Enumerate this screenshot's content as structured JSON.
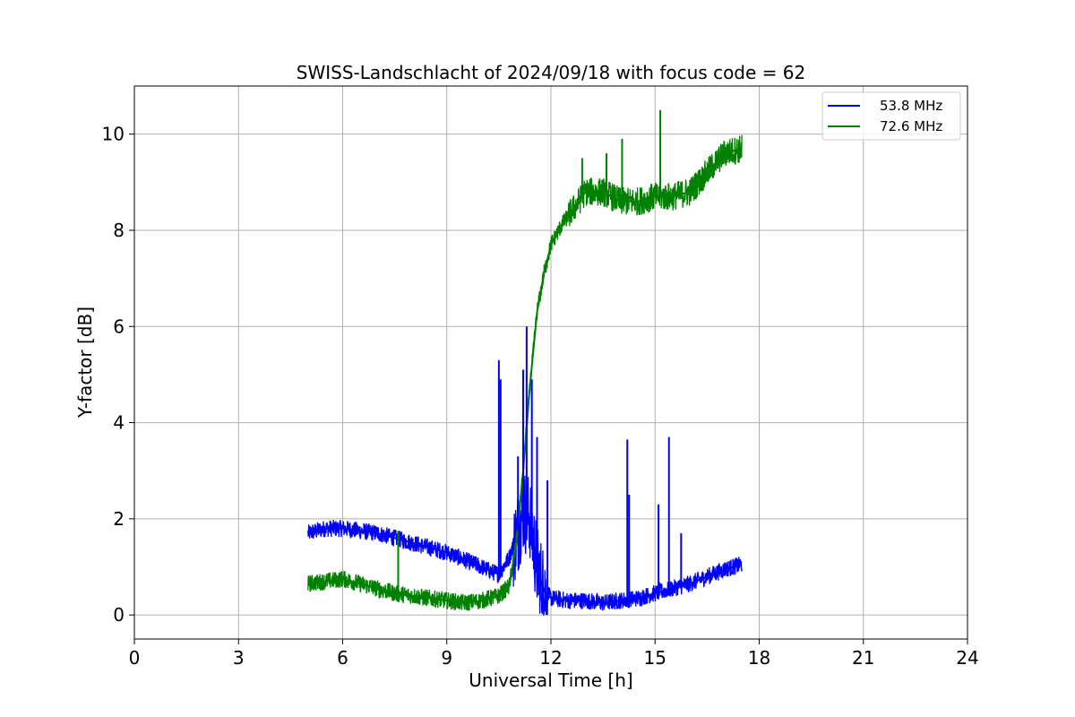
{
  "chart_data": {
    "type": "line",
    "title": "SWISS-Landschlacht of 2024/09/18 with focus code = 62",
    "xlabel": "Universal Time [h]",
    "ylabel": "Y-factor [dB]",
    "xlim": [
      0,
      24
    ],
    "ylim": [
      -0.5,
      11
    ],
    "xticks": [
      0,
      3,
      6,
      9,
      12,
      15,
      18,
      21,
      24
    ],
    "yticks": [
      0,
      2,
      4,
      6,
      8,
      10
    ],
    "grid": true,
    "legend_position": "top-right",
    "series": [
      {
        "name": "53.8 MHz",
        "color": "#0000ff",
        "x": [
          5.0,
          5.5,
          6.0,
          6.5,
          7.0,
          7.5,
          8.0,
          8.5,
          9.0,
          9.5,
          10.0,
          10.3,
          10.5,
          10.8,
          11.0,
          11.2,
          11.4,
          11.6,
          11.8,
          12.0,
          12.5,
          13.0,
          13.5,
          14.0,
          14.5,
          15.0,
          15.5,
          16.0,
          16.5,
          17.0,
          17.5
        ],
        "y": [
          1.7,
          1.8,
          1.8,
          1.75,
          1.7,
          1.6,
          1.5,
          1.4,
          1.3,
          1.15,
          1.0,
          0.9,
          0.85,
          1.2,
          1.6,
          2.2,
          2.0,
          1.0,
          0.5,
          0.35,
          0.3,
          0.3,
          0.25,
          0.3,
          0.35,
          0.45,
          0.55,
          0.65,
          0.8,
          0.95,
          1.05
        ]
      },
      {
        "name": "72.6 MHz",
        "color": "#008000",
        "x": [
          5.0,
          5.5,
          6.0,
          6.5,
          7.0,
          7.5,
          8.0,
          8.5,
          9.0,
          9.5,
          10.0,
          10.5,
          10.8,
          11.0,
          11.2,
          11.4,
          11.6,
          11.8,
          12.0,
          12.3,
          12.6,
          13.0,
          13.5,
          14.0,
          14.5,
          15.0,
          15.5,
          16.0,
          16.5,
          17.0,
          17.5
        ],
        "y": [
          0.65,
          0.7,
          0.75,
          0.65,
          0.55,
          0.45,
          0.4,
          0.35,
          0.3,
          0.25,
          0.3,
          0.4,
          0.6,
          1.5,
          3.0,
          4.8,
          6.3,
          7.1,
          7.7,
          8.1,
          8.4,
          8.8,
          8.8,
          8.6,
          8.6,
          8.7,
          8.7,
          8.8,
          9.2,
          9.6,
          9.7
        ]
      }
    ],
    "spikes": [
      {
        "series": 0,
        "x": 10.5,
        "y": 5.3
      },
      {
        "series": 0,
        "x": 10.55,
        "y": 4.9
      },
      {
        "series": 0,
        "x": 11.05,
        "y": 3.3
      },
      {
        "series": 0,
        "x": 11.2,
        "y": 5.1
      },
      {
        "series": 0,
        "x": 11.3,
        "y": 6.0
      },
      {
        "series": 0,
        "x": 11.45,
        "y": 4.9
      },
      {
        "series": 0,
        "x": 11.6,
        "y": 3.7
      },
      {
        "series": 0,
        "x": 11.9,
        "y": 2.8
      },
      {
        "series": 0,
        "x": 14.2,
        "y": 3.65
      },
      {
        "series": 0,
        "x": 14.25,
        "y": 2.5
      },
      {
        "series": 0,
        "x": 15.1,
        "y": 2.3
      },
      {
        "series": 0,
        "x": 15.4,
        "y": 3.7
      },
      {
        "series": 0,
        "x": 15.75,
        "y": 1.7
      },
      {
        "series": 1,
        "x": 7.6,
        "y": 1.75
      },
      {
        "series": 1,
        "x": 15.15,
        "y": 10.5
      },
      {
        "series": 1,
        "x": 14.05,
        "y": 9.9
      },
      {
        "series": 1,
        "x": 13.6,
        "y": 9.6
      },
      {
        "series": 1,
        "x": 12.9,
        "y": 9.5
      }
    ]
  }
}
